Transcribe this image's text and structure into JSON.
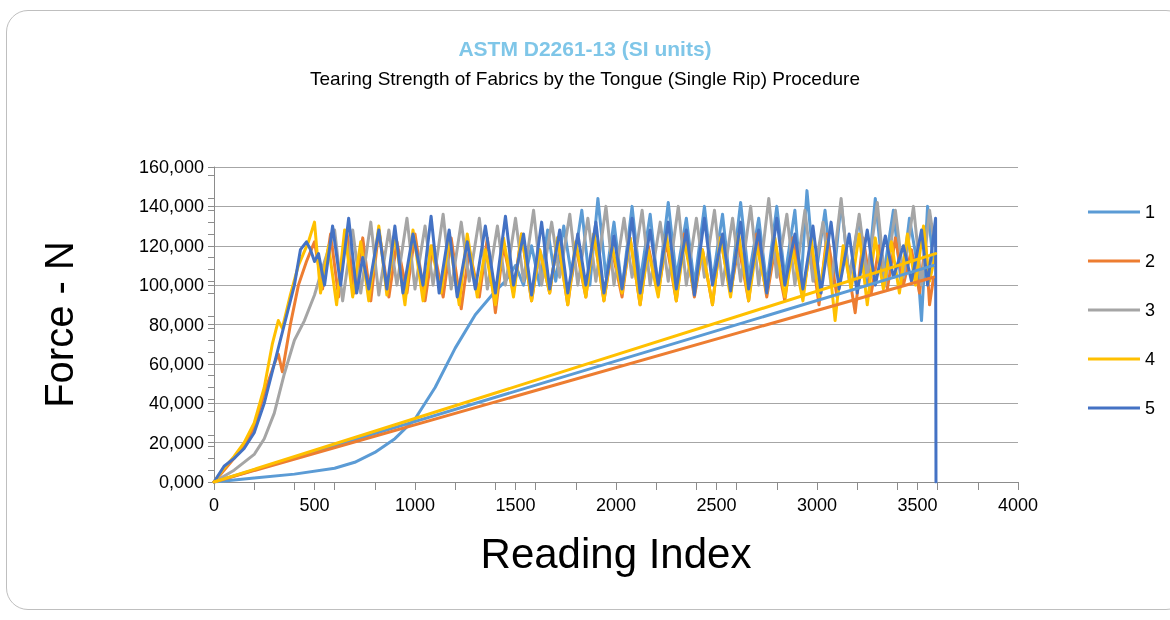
{
  "chart_data": {
    "type": "line",
    "title": "ASTM D2261-13 (SI units)",
    "subtitle": "Tearing Strength of Fabrics by the Tongue (Single Rip) Procedure",
    "xlabel": "Reading Index",
    "ylabel": "Force - N",
    "xlim": [
      0,
      4000
    ],
    "xticks": [
      0,
      500,
      1000,
      1500,
      2000,
      2500,
      3000,
      3500,
      4000
    ],
    "ylim": [
      0,
      160000
    ],
    "yticks": [
      {
        "value": 0,
        "label": "0,000"
      },
      {
        "value": 20000,
        "label": "20,000"
      },
      {
        "value": 40000,
        "label": "40,000"
      },
      {
        "value": 60000,
        "label": "60,000"
      },
      {
        "value": 80000,
        "label": "80,000"
      },
      {
        "value": 100000,
        "label": "100,000"
      },
      {
        "value": 120000,
        "label": "120,000"
      },
      {
        "value": 140000,
        "label": "140,000"
      },
      {
        "value": 160000,
        "label": "160,000"
      }
    ],
    "grid": "y",
    "legend": "right",
    "marker": "none",
    "line_style": "solid",
    "series": [
      {
        "name": "1",
        "color": "#5b9bd5",
        "x": [
          0,
          200,
          400,
          600,
          700,
          800,
          900,
          1000,
          1100,
          1200,
          1300,
          1400,
          1450,
          1500,
          1540,
          1580,
          1620,
          1660,
          1700,
          1740,
          1780,
          1830,
          1870,
          1910,
          1950,
          1990,
          2030,
          2080,
          2120,
          2170,
          2210,
          2260,
          2300,
          2350,
          2390,
          2440,
          2480,
          2530,
          2570,
          2620,
          2660,
          2710,
          2750,
          2800,
          2840,
          2890,
          2920,
          2950,
          2990,
          3040,
          3080,
          3120,
          3160,
          3210,
          3250,
          3290,
          3330,
          3380,
          3420,
          3460,
          3500,
          3520,
          3550,
          3580
        ],
        "values": [
          0,
          2000,
          4000,
          7000,
          10000,
          15000,
          22000,
          32000,
          48000,
          68000,
          85000,
          97000,
          102000,
          110000,
          100000,
          120000,
          100000,
          128000,
          102000,
          130000,
          104000,
          138000,
          100000,
          144000,
          104000,
          132000,
          98000,
          140000,
          102000,
          136000,
          98000,
          142000,
          104000,
          134000,
          100000,
          140000,
          102000,
          136000,
          98000,
          142000,
          104000,
          134000,
          100000,
          140000,
          104000,
          138000,
          100000,
          148000,
          102000,
          138000,
          100000,
          142000,
          104000,
          134000,
          100000,
          144000,
          104000,
          138000,
          100000,
          134000,
          110000,
          82000,
          140000,
          110000
        ]
      },
      {
        "name": "2",
        "color": "#ed7d31",
        "x": [
          0,
          50,
          100,
          150,
          200,
          250,
          300,
          320,
          340,
          380,
          420,
          460,
          500,
          540,
          580,
          620,
          660,
          700,
          740,
          780,
          820,
          870,
          910,
          960,
          1000,
          1050,
          1090,
          1140,
          1180,
          1230,
          1270,
          1320,
          1360,
          1400,
          1440,
          1490,
          1530,
          1580,
          1620,
          1670,
          1710,
          1760,
          1800,
          1850,
          1890,
          1940,
          1980,
          2030,
          2070,
          2120,
          2160,
          2210,
          2250,
          2300,
          2340,
          2390,
          2430,
          2480,
          2520,
          2570,
          2610,
          2660,
          2700,
          2750,
          2790,
          2840,
          2880,
          2930,
          2970,
          3010,
          3050,
          3100,
          3140,
          3190,
          3230,
          3270,
          3310,
          3350,
          3390,
          3430,
          3470,
          3510,
          3540,
          3560,
          3580
        ],
        "values": [
          0,
          6000,
          12000,
          18000,
          28000,
          45000,
          60000,
          65000,
          56000,
          80000,
          100000,
          112000,
          122000,
          98000,
          126000,
          94000,
          128000,
          96000,
          124000,
          92000,
          128000,
          94000,
          122000,
          96000,
          126000,
          92000,
          120000,
          94000,
          124000,
          88000,
          118000,
          94000,
          124000,
          86000,
          120000,
          96000,
          126000,
          92000,
          118000,
          96000,
          124000,
          90000,
          120000,
          94000,
          126000,
          92000,
          118000,
          94000,
          124000,
          90000,
          120000,
          96000,
          122000,
          92000,
          126000,
          94000,
          118000,
          90000,
          124000,
          96000,
          120000,
          92000,
          126000,
          94000,
          118000,
          92000,
          124000,
          96000,
          120000,
          90000,
          126000,
          94000,
          118000,
          86000,
          124000,
          96000,
          120000,
          98000,
          124000,
          100000,
          118000,
          96000,
          122000,
          90000,
          104000
        ]
      },
      {
        "name": "3",
        "color": "#a5a5a5",
        "x": [
          0,
          100,
          200,
          250,
          300,
          350,
          400,
          450,
          500,
          550,
          600,
          640,
          690,
          730,
          780,
          820,
          870,
          910,
          960,
          1000,
          1050,
          1090,
          1140,
          1180,
          1230,
          1270,
          1320,
          1360,
          1410,
          1450,
          1500,
          1540,
          1590,
          1630,
          1680,
          1720,
          1770,
          1810,
          1860,
          1900,
          1950,
          1990,
          2040,
          2080,
          2130,
          2170,
          2220,
          2260,
          2310,
          2350,
          2400,
          2440,
          2490,
          2530,
          2580,
          2620,
          2670,
          2710,
          2760,
          2800,
          2850,
          2890,
          2940,
          2980,
          3030,
          3070,
          3120,
          3160,
          3210,
          3250,
          3300,
          3340,
          3390,
          3430,
          3480,
          3520,
          3560,
          3585
        ],
        "values": [
          0,
          6000,
          14000,
          22000,
          35000,
          55000,
          72000,
          82000,
          95000,
          112000,
          128000,
          92000,
          128000,
          96000,
          132000,
          95000,
          128000,
          100000,
          134000,
          98000,
          130000,
          100000,
          136000,
          98000,
          132000,
          102000,
          134000,
          98000,
          130000,
          100000,
          134000,
          102000,
          138000,
          100000,
          132000,
          104000,
          136000,
          100000,
          134000,
          102000,
          140000,
          100000,
          134000,
          104000,
          138000,
          100000,
          132000,
          102000,
          140000,
          100000,
          134000,
          104000,
          138000,
          100000,
          134000,
          102000,
          140000,
          100000,
          144000,
          104000,
          136000,
          100000,
          138000,
          102000,
          132000,
          100000,
          144000,
          102000,
          136000,
          104000,
          142000,
          100000,
          138000,
          104000,
          140000,
          100000,
          138000,
          120000
        ]
      },
      {
        "name": "4",
        "color": "#ffc000",
        "x": [
          0,
          50,
          100,
          150,
          200,
          250,
          290,
          320,
          340,
          380,
          420,
          470,
          500,
          530,
          570,
          610,
          650,
          690,
          730,
          770,
          820,
          860,
          900,
          950,
          990,
          1040,
          1080,
          1130,
          1170,
          1220,
          1260,
          1310,
          1350,
          1400,
          1440,
          1490,
          1530,
          1580,
          1620,
          1670,
          1710,
          1760,
          1800,
          1850,
          1890,
          1940,
          1980,
          2030,
          2070,
          2120,
          2160,
          2210,
          2250,
          2300,
          2340,
          2390,
          2430,
          2480,
          2520,
          2570,
          2610,
          2660,
          2700,
          2750,
          2790,
          2840,
          2880,
          2930,
          2970,
          3010,
          3050,
          3090,
          3130,
          3170,
          3210,
          3250,
          3290,
          3330,
          3370,
          3410,
          3450,
          3490,
          3530,
          3560,
          3590
        ],
        "values": [
          0,
          7000,
          13000,
          20000,
          30000,
          48000,
          70000,
          82000,
          78000,
          95000,
          110000,
          122000,
          132000,
          96000,
          120000,
          90000,
          128000,
          94000,
          122000,
          92000,
          130000,
          95000,
          126000,
          90000,
          128000,
          92000,
          120000,
          96000,
          124000,
          90000,
          126000,
          94000,
          118000,
          90000,
          124000,
          94000,
          126000,
          92000,
          118000,
          96000,
          124000,
          90000,
          122000,
          94000,
          126000,
          92000,
          120000,
          96000,
          124000,
          90000,
          118000,
          94000,
          126000,
          92000,
          122000,
          96000,
          118000,
          90000,
          124000,
          94000,
          126000,
          92000,
          120000,
          96000,
          124000,
          94000,
          118000,
          92000,
          124000,
          94000,
          122000,
          82000,
          120000,
          98000,
          126000,
          90000,
          124000,
          98000,
          122000,
          96000,
          126000,
          100000,
          130000,
          102000,
          116000
        ]
      },
      {
        "name": "5",
        "color": "#4472c4",
        "x": [
          0,
          50,
          100,
          150,
          200,
          250,
          300,
          350,
          400,
          430,
          460,
          480,
          500,
          520,
          550,
          590,
          630,
          670,
          710,
          740,
          770,
          820,
          860,
          900,
          940,
          990,
          1040,
          1080,
          1120,
          1170,
          1210,
          1260,
          1300,
          1350,
          1400,
          1450,
          1490,
          1540,
          1580,
          1630,
          1670,
          1720,
          1760,
          1810,
          1850,
          1900,
          1940,
          1990,
          2030,
          2080,
          2120,
          2170,
          2210,
          2260,
          2300,
          2350,
          2390,
          2440,
          2480,
          2530,
          2570,
          2620,
          2660,
          2710,
          2750,
          2800,
          2840,
          2890,
          2930,
          2980,
          3020,
          3070,
          3110,
          3160,
          3200,
          3250,
          3290,
          3340,
          3380,
          3430,
          3470,
          3520,
          3550,
          3590,
          3592
        ],
        "values": [
          0,
          8000,
          12000,
          17000,
          25000,
          40000,
          60000,
          80000,
          100000,
          118000,
          122000,
          118000,
          112000,
          116000,
          100000,
          130000,
          100000,
          134000,
          96000,
          114000,
          98000,
          128000,
          98000,
          130000,
          96000,
          126000,
          100000,
          135000,
          96000,
          128000,
          94000,
          122000,
          98000,
          130000,
          96000,
          135000,
          100000,
          126000,
          95000,
          132000,
          98000,
          128000,
          96000,
          126000,
          100000,
          132000,
          96000,
          125000,
          98000,
          134000,
          96000,
          128000,
          100000,
          132000,
          98000,
          128000,
          95000,
          134000,
          100000,
          126000,
          97000,
          132000,
          98000,
          128000,
          96000,
          134000,
          100000,
          126000,
          98000,
          130000,
          96000,
          132000,
          98000,
          126000,
          96000,
          128000,
          100000,
          125000,
          104000,
          120000,
          102000,
          128000,
          100000,
          134000,
          0
        ]
      },
      {
        "color": "#5b9bd5",
        "x": [
          0,
          3580
        ],
        "values": [
          0,
          110000
        ]
      },
      {
        "color": "#ed7d31",
        "x": [
          0,
          3580
        ],
        "values": [
          0,
          104000
        ]
      },
      {
        "color": "#ffc000",
        "x": [
          0,
          3590
        ],
        "values": [
          0,
          116000
        ]
      }
    ]
  }
}
